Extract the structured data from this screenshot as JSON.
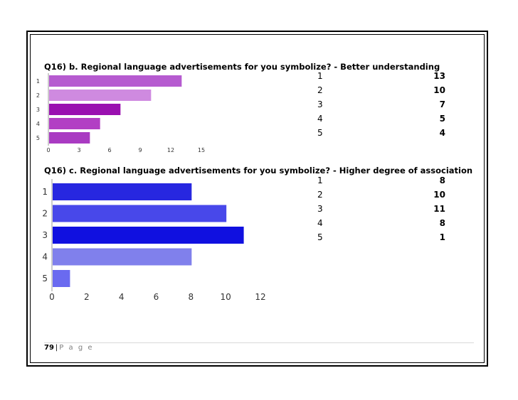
{
  "page": {
    "number": "79",
    "separator": "|",
    "label": "P a g e"
  },
  "q16b": {
    "title": "Q16) b. Regional language advertisements for you symbolize? - Better understanding",
    "table": [
      {
        "key": "1",
        "value": "13"
      },
      {
        "key": "2",
        "value": "10"
      },
      {
        "key": "3",
        "value": "7"
      },
      {
        "key": "4",
        "value": "5"
      },
      {
        "key": "5",
        "value": "4"
      }
    ]
  },
  "q16c": {
    "title": "Q16) c.  Regional language advertisements for you symbolize? - Higher degree of association",
    "table": [
      {
        "key": "1",
        "value": "8"
      },
      {
        "key": "2",
        "value": "10"
      },
      {
        "key": "3",
        "value": "11"
      },
      {
        "key": "4",
        "value": "8"
      },
      {
        "key": "5",
        "value": "1"
      }
    ]
  },
  "chart_data": [
    {
      "type": "bar",
      "orientation": "horizontal",
      "categories": [
        "1",
        "2",
        "3",
        "4",
        "5"
      ],
      "values": [
        13,
        10,
        7,
        5,
        4
      ],
      "xlim": [
        0,
        15
      ],
      "xticks": [
        "0",
        "3",
        "6",
        "9",
        "12",
        "15"
      ],
      "colors": [
        "#b65bd0",
        "#cf8ae0",
        "#9a10b0",
        "#b23fc4",
        "#a93bc2"
      ]
    },
    {
      "type": "bar",
      "orientation": "horizontal",
      "categories": [
        "1",
        "2",
        "3",
        "4",
        "5"
      ],
      "values": [
        8,
        10,
        11,
        8,
        1
      ],
      "xlim": [
        0,
        12
      ],
      "xticks": [
        "0",
        "2",
        "4",
        "6",
        "8",
        "10",
        "12"
      ],
      "colors": [
        "#2727e0",
        "#4848ea",
        "#1010e0",
        "#8080ec",
        "#6a6af0"
      ]
    }
  ]
}
